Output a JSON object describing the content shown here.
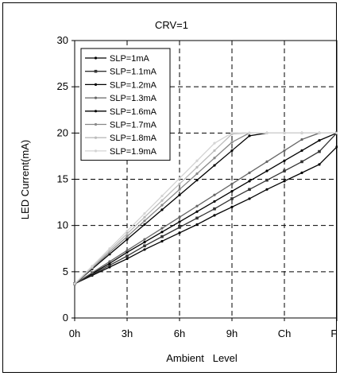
{
  "chart_data": {
    "type": "line",
    "title": "CRV=1",
    "xlabel": "Ambient   Level",
    "ylabel": "LED Current(mA)",
    "x_tick_labels": [
      "0h",
      "3h",
      "6h",
      "9h",
      "Ch",
      "Fh"
    ],
    "x": [
      0,
      1,
      2,
      3,
      4,
      5,
      6,
      7,
      8,
      9,
      10,
      11,
      12,
      13,
      14,
      15
    ],
    "xlim": [
      0,
      15
    ],
    "ylim": [
      0,
      30
    ],
    "y_ticks": [
      0,
      5,
      10,
      15,
      20,
      25,
      30
    ],
    "grid": true,
    "legend_position": "top-left",
    "series": [
      {
        "name": "SLP=1mA",
        "color": "#000000",
        "marker": "dot",
        "values": [
          3.7,
          4.6,
          5.5,
          6.4,
          7.4,
          8.3,
          9.2,
          10.1,
          11.1,
          12.0,
          12.9,
          13.9,
          14.8,
          15.7,
          16.6,
          18.5
        ]
      },
      {
        "name": "SLP=1.1mA",
        "color": "#333333",
        "marker": "square",
        "values": [
          3.7,
          4.7,
          5.7,
          6.7,
          7.8,
          8.8,
          9.8,
          10.8,
          11.8,
          12.9,
          13.9,
          14.9,
          15.9,
          16.9,
          18.0,
          20.0
        ]
      },
      {
        "name": "SLP=1.2mA",
        "color": "#000000",
        "marker": "dot",
        "values": [
          3.7,
          4.8,
          5.9,
          7.1,
          8.2,
          9.3,
          10.4,
          11.5,
          12.6,
          13.7,
          14.8,
          15.9,
          17.0,
          18.1,
          19.2,
          20.0
        ]
      },
      {
        "name": "SLP=1.3mA",
        "color": "#666666",
        "marker": "dot",
        "values": [
          3.7,
          4.9,
          6.1,
          7.3,
          8.5,
          9.7,
          10.9,
          12.1,
          13.3,
          14.5,
          15.7,
          16.9,
          18.1,
          19.3,
          20.0,
          20.0
        ]
      },
      {
        "name": "SLP=1.6mA",
        "color": "#000000",
        "marker": "dot",
        "values": [
          3.7,
          5.3,
          6.9,
          8.5,
          10.1,
          11.7,
          13.3,
          14.9,
          16.5,
          18.1,
          19.7,
          20.0,
          20.0,
          20.0,
          20.0,
          20.0
        ]
      },
      {
        "name": "SLP=1.7mA",
        "color": "#888888",
        "marker": "dot",
        "values": [
          3.7,
          5.4,
          7.1,
          8.8,
          10.5,
          12.2,
          13.9,
          15.6,
          17.3,
          19.0,
          20.0,
          20.0,
          20.0,
          20.0,
          20.0,
          20.0
        ]
      },
      {
        "name": "SLP=1.8mA",
        "color": "#bbbbbb",
        "marker": "dot",
        "values": [
          3.7,
          5.5,
          7.3,
          9.1,
          10.9,
          12.7,
          14.5,
          16.3,
          18.1,
          19.9,
          20.0,
          20.0,
          20.0,
          20.0,
          20.0,
          20.0
        ]
      },
      {
        "name": "SLP=1.9mA",
        "color": "#d4d4d4",
        "marker": "dot",
        "values": [
          3.7,
          5.6,
          7.5,
          9.4,
          11.3,
          13.2,
          15.1,
          17.0,
          18.9,
          20.0,
          20.0,
          20.0,
          20.0,
          20.0,
          20.0,
          20.0
        ]
      }
    ]
  }
}
